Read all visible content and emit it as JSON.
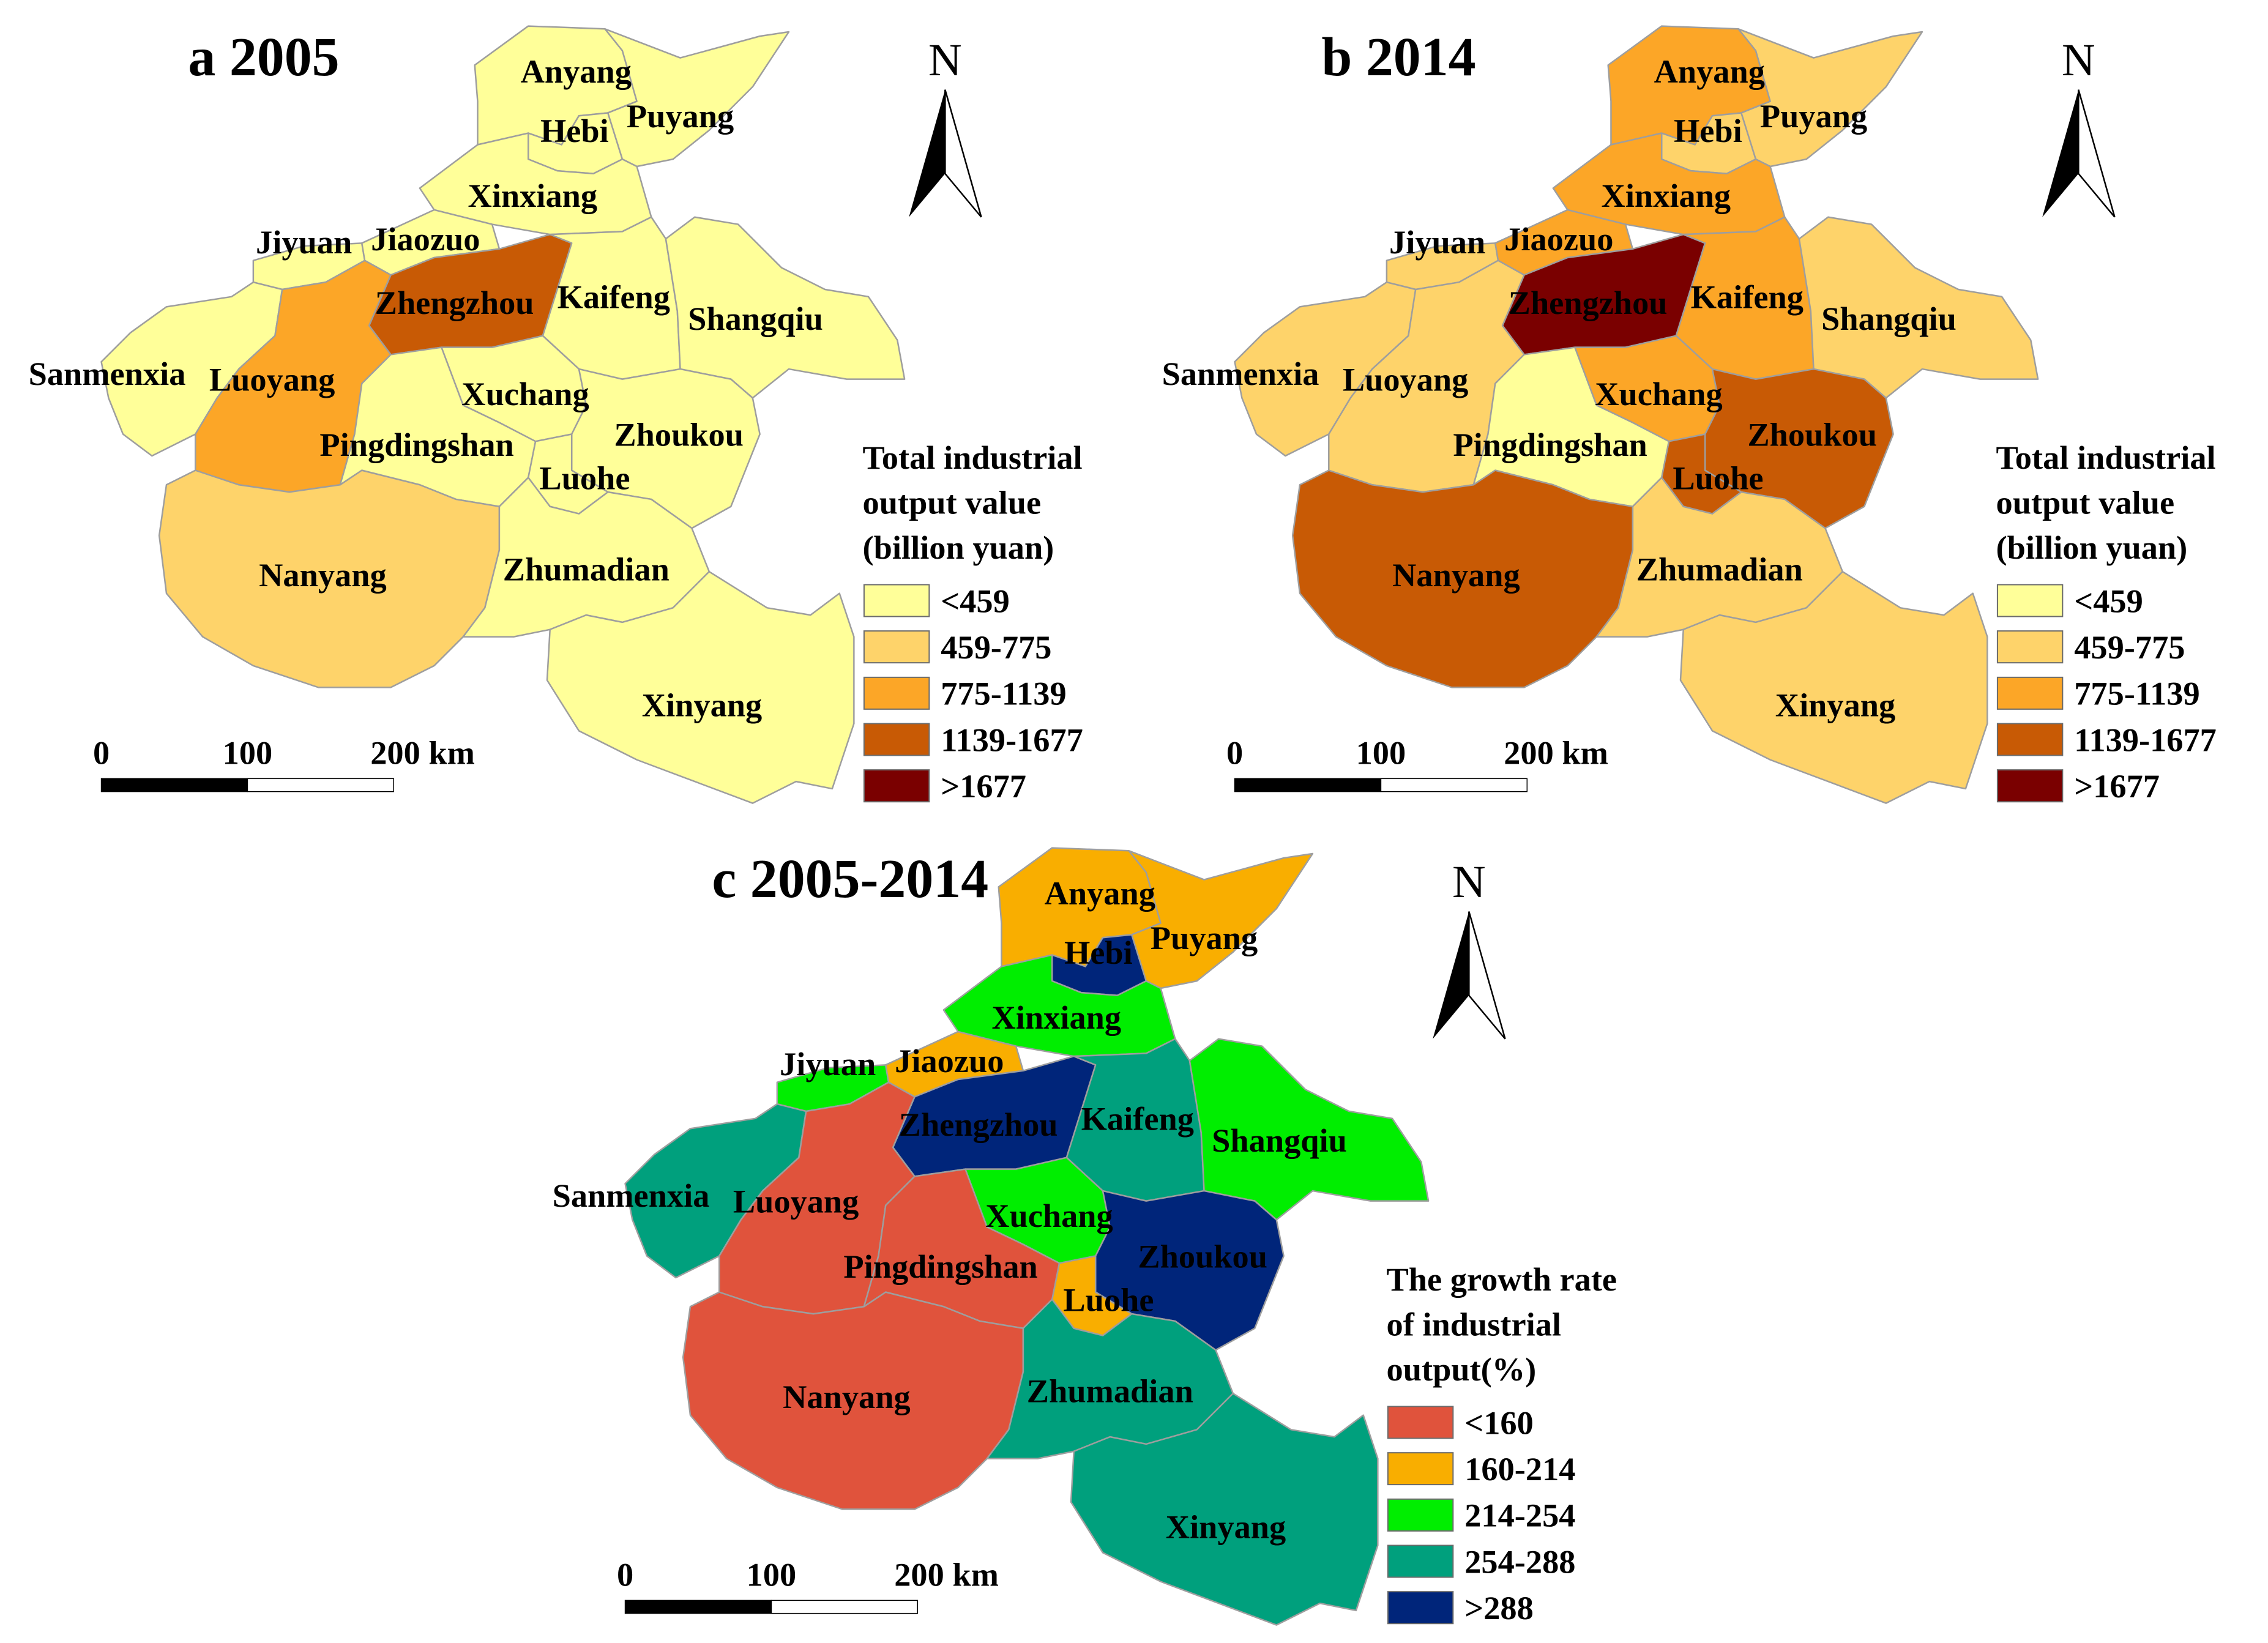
{
  "panels": [
    {
      "id": "a",
      "title": "a 2005",
      "north": "N",
      "scale": {
        "labels": [
          "0",
          "100",
          "200 km"
        ]
      },
      "legend": {
        "title_lines": [
          "Total industrial",
          "output value",
          "(billion yuan)"
        ],
        "classes": [
          {
            "label": "<459",
            "color": "#ffff99"
          },
          {
            "label": "459-775",
            "color": "#fed36a"
          },
          {
            "label": "775-1139",
            "color": "#fca627"
          },
          {
            "label": "1139-1677",
            "color": "#c85a05"
          },
          {
            "label": ">1677",
            "color": "#7a0000"
          }
        ]
      },
      "regions": [
        {
          "name": "Anyang",
          "class": 0
        },
        {
          "name": "Hebi",
          "class": 0
        },
        {
          "name": "Puyang",
          "class": 0
        },
        {
          "name": "Xinxiang",
          "class": 0
        },
        {
          "name": "Jiyuan",
          "class": 0
        },
        {
          "name": "Jiaozuo",
          "class": 0
        },
        {
          "name": "Zhengzhou",
          "class": 3
        },
        {
          "name": "Kaifeng",
          "class": 0
        },
        {
          "name": "Shangqiu",
          "class": 0
        },
        {
          "name": "Sanmenxia",
          "class": 0
        },
        {
          "name": "Luoyang",
          "class": 2
        },
        {
          "name": "Xuchang",
          "class": 0
        },
        {
          "name": "Pingdingshan",
          "class": 0
        },
        {
          "name": "Zhoukou",
          "class": 0
        },
        {
          "name": "Luohe",
          "class": 0
        },
        {
          "name": "Nanyang",
          "class": 1
        },
        {
          "name": "Zhumadian",
          "class": 0
        },
        {
          "name": "Xinyang",
          "class": 0
        }
      ]
    },
    {
      "id": "b",
      "title": "b 2014",
      "north": "N",
      "scale": {
        "labels": [
          "0",
          "100",
          "200 km"
        ]
      },
      "legend": {
        "title_lines": [
          "Total industrial",
          "output value",
          "(billion yuan)"
        ],
        "classes": [
          {
            "label": "<459",
            "color": "#ffff99"
          },
          {
            "label": "459-775",
            "color": "#fed36a"
          },
          {
            "label": "775-1139",
            "color": "#fca627"
          },
          {
            "label": "1139-1677",
            "color": "#c85a05"
          },
          {
            "label": ">1677",
            "color": "#7a0000"
          }
        ]
      },
      "regions": [
        {
          "name": "Anyang",
          "class": 2
        },
        {
          "name": "Hebi",
          "class": 1
        },
        {
          "name": "Puyang",
          "class": 1
        },
        {
          "name": "Xinxiang",
          "class": 2
        },
        {
          "name": "Jiyuan",
          "class": 1
        },
        {
          "name": "Jiaozuo",
          "class": 2
        },
        {
          "name": "Zhengzhou",
          "class": 4
        },
        {
          "name": "Kaifeng",
          "class": 2
        },
        {
          "name": "Shangqiu",
          "class": 1
        },
        {
          "name": "Sanmenxia",
          "class": 1
        },
        {
          "name": "Luoyang",
          "class": 1
        },
        {
          "name": "Xuchang",
          "class": 2
        },
        {
          "name": "Pingdingshan",
          "class": 0
        },
        {
          "name": "Zhoukou",
          "class": 3
        },
        {
          "name": "Luohe",
          "class": 3
        },
        {
          "name": "Nanyang",
          "class": 3
        },
        {
          "name": "Zhumadian",
          "class": 1
        },
        {
          "name": "Xinyang",
          "class": 1
        }
      ]
    },
    {
      "id": "c",
      "title": "c 2005-2014",
      "north": "N",
      "scale": {
        "labels": [
          "0",
          "100",
          "200 km"
        ]
      },
      "legend": {
        "title_lines": [
          "The growth rate",
          "of industrial",
          "output(%)"
        ],
        "classes": [
          {
            "label": "<160",
            "color": "#e0533c"
          },
          {
            "label": "160-214",
            "color": "#f9ae00"
          },
          {
            "label": "214-254",
            "color": "#00ee00"
          },
          {
            "label": "254-288",
            "color": "#00a07d"
          },
          {
            "label": ">288",
            "color": "#00257a"
          }
        ]
      },
      "regions": [
        {
          "name": "Anyang",
          "class": 1
        },
        {
          "name": "Hebi",
          "class": 4
        },
        {
          "name": "Puyang",
          "class": 1
        },
        {
          "name": "Xinxiang",
          "class": 2
        },
        {
          "name": "Jiyuan",
          "class": 2
        },
        {
          "name": "Jiaozuo",
          "class": 1
        },
        {
          "name": "Zhengzhou",
          "class": 4
        },
        {
          "name": "Kaifeng",
          "class": 3
        },
        {
          "name": "Shangqiu",
          "class": 2
        },
        {
          "name": "Sanmenxia",
          "class": 3
        },
        {
          "name": "Luoyang",
          "class": 0
        },
        {
          "name": "Xuchang",
          "class": 2
        },
        {
          "name": "Pingdingshan",
          "class": 0
        },
        {
          "name": "Zhoukou",
          "class": 4
        },
        {
          "name": "Luohe",
          "class": 1
        },
        {
          "name": "Nanyang",
          "class": 0
        },
        {
          "name": "Zhumadian",
          "class": 3
        },
        {
          "name": "Xinyang",
          "class": 3
        }
      ]
    }
  ]
}
